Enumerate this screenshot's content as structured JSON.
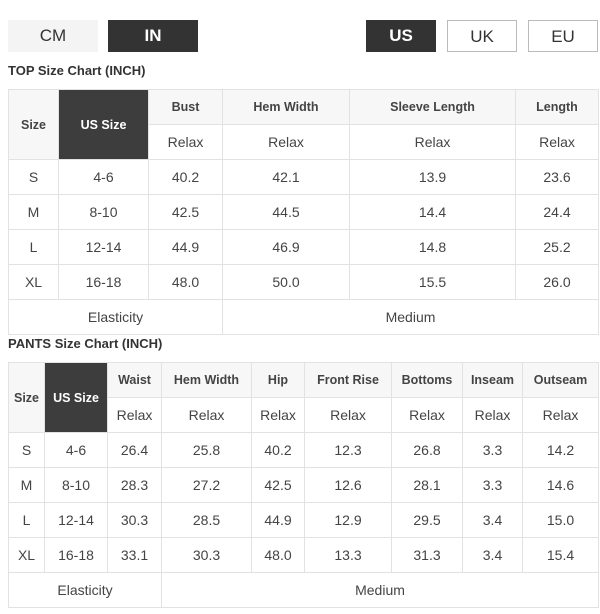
{
  "unit_toggle": {
    "cm": "CM",
    "in": "IN",
    "selected": "IN"
  },
  "region_toggle": {
    "us": "US",
    "uk": "UK",
    "eu": "EU",
    "selected": "US"
  },
  "top": {
    "title": "TOP Size Chart (INCH)",
    "size_header": "Size",
    "us_header": "US Size",
    "columns": [
      "Bust",
      "Hem Width",
      "Sleeve Length",
      "Length"
    ],
    "fit": [
      "Relax",
      "Relax",
      "Relax",
      "Relax"
    ],
    "rows": [
      {
        "size": "S",
        "us": "4-6",
        "values": [
          "40.2",
          "42.1",
          "13.9",
          "23.6"
        ]
      },
      {
        "size": "M",
        "us": "8-10",
        "values": [
          "42.5",
          "44.5",
          "14.4",
          "24.4"
        ]
      },
      {
        "size": "L",
        "us": "12-14",
        "values": [
          "44.9",
          "46.9",
          "14.8",
          "25.2"
        ]
      },
      {
        "size": "XL",
        "us": "16-18",
        "values": [
          "48.0",
          "50.0",
          "15.5",
          "26.0"
        ]
      }
    ],
    "elasticity_label": "Elasticity",
    "elasticity_value": "Medium"
  },
  "pants": {
    "title": "PANTS Size Chart (INCH)",
    "size_header": "Size",
    "us_header": "US Size",
    "columns": [
      "Waist",
      "Hem Width",
      "Hip",
      "Front Rise",
      "Bottoms",
      "Inseam",
      "Outseam"
    ],
    "fit": [
      "Relax",
      "Relax",
      "Relax",
      "Relax",
      "Relax",
      "Relax",
      "Relax"
    ],
    "rows": [
      {
        "size": "S",
        "us": "4-6",
        "values": [
          "26.4",
          "25.8",
          "40.2",
          "12.3",
          "26.8",
          "3.3",
          "14.2"
        ]
      },
      {
        "size": "M",
        "us": "8-10",
        "values": [
          "28.3",
          "27.2",
          "42.5",
          "12.6",
          "28.1",
          "3.3",
          "14.6"
        ]
      },
      {
        "size": "L",
        "us": "12-14",
        "values": [
          "30.3",
          "28.5",
          "44.9",
          "12.9",
          "29.5",
          "3.4",
          "15.0"
        ]
      },
      {
        "size": "XL",
        "us": "16-18",
        "values": [
          "33.1",
          "30.3",
          "48.0",
          "13.3",
          "31.3",
          "3.4",
          "15.4"
        ]
      }
    ],
    "elasticity_label": "Elasticity",
    "elasticity_value": "Medium"
  }
}
